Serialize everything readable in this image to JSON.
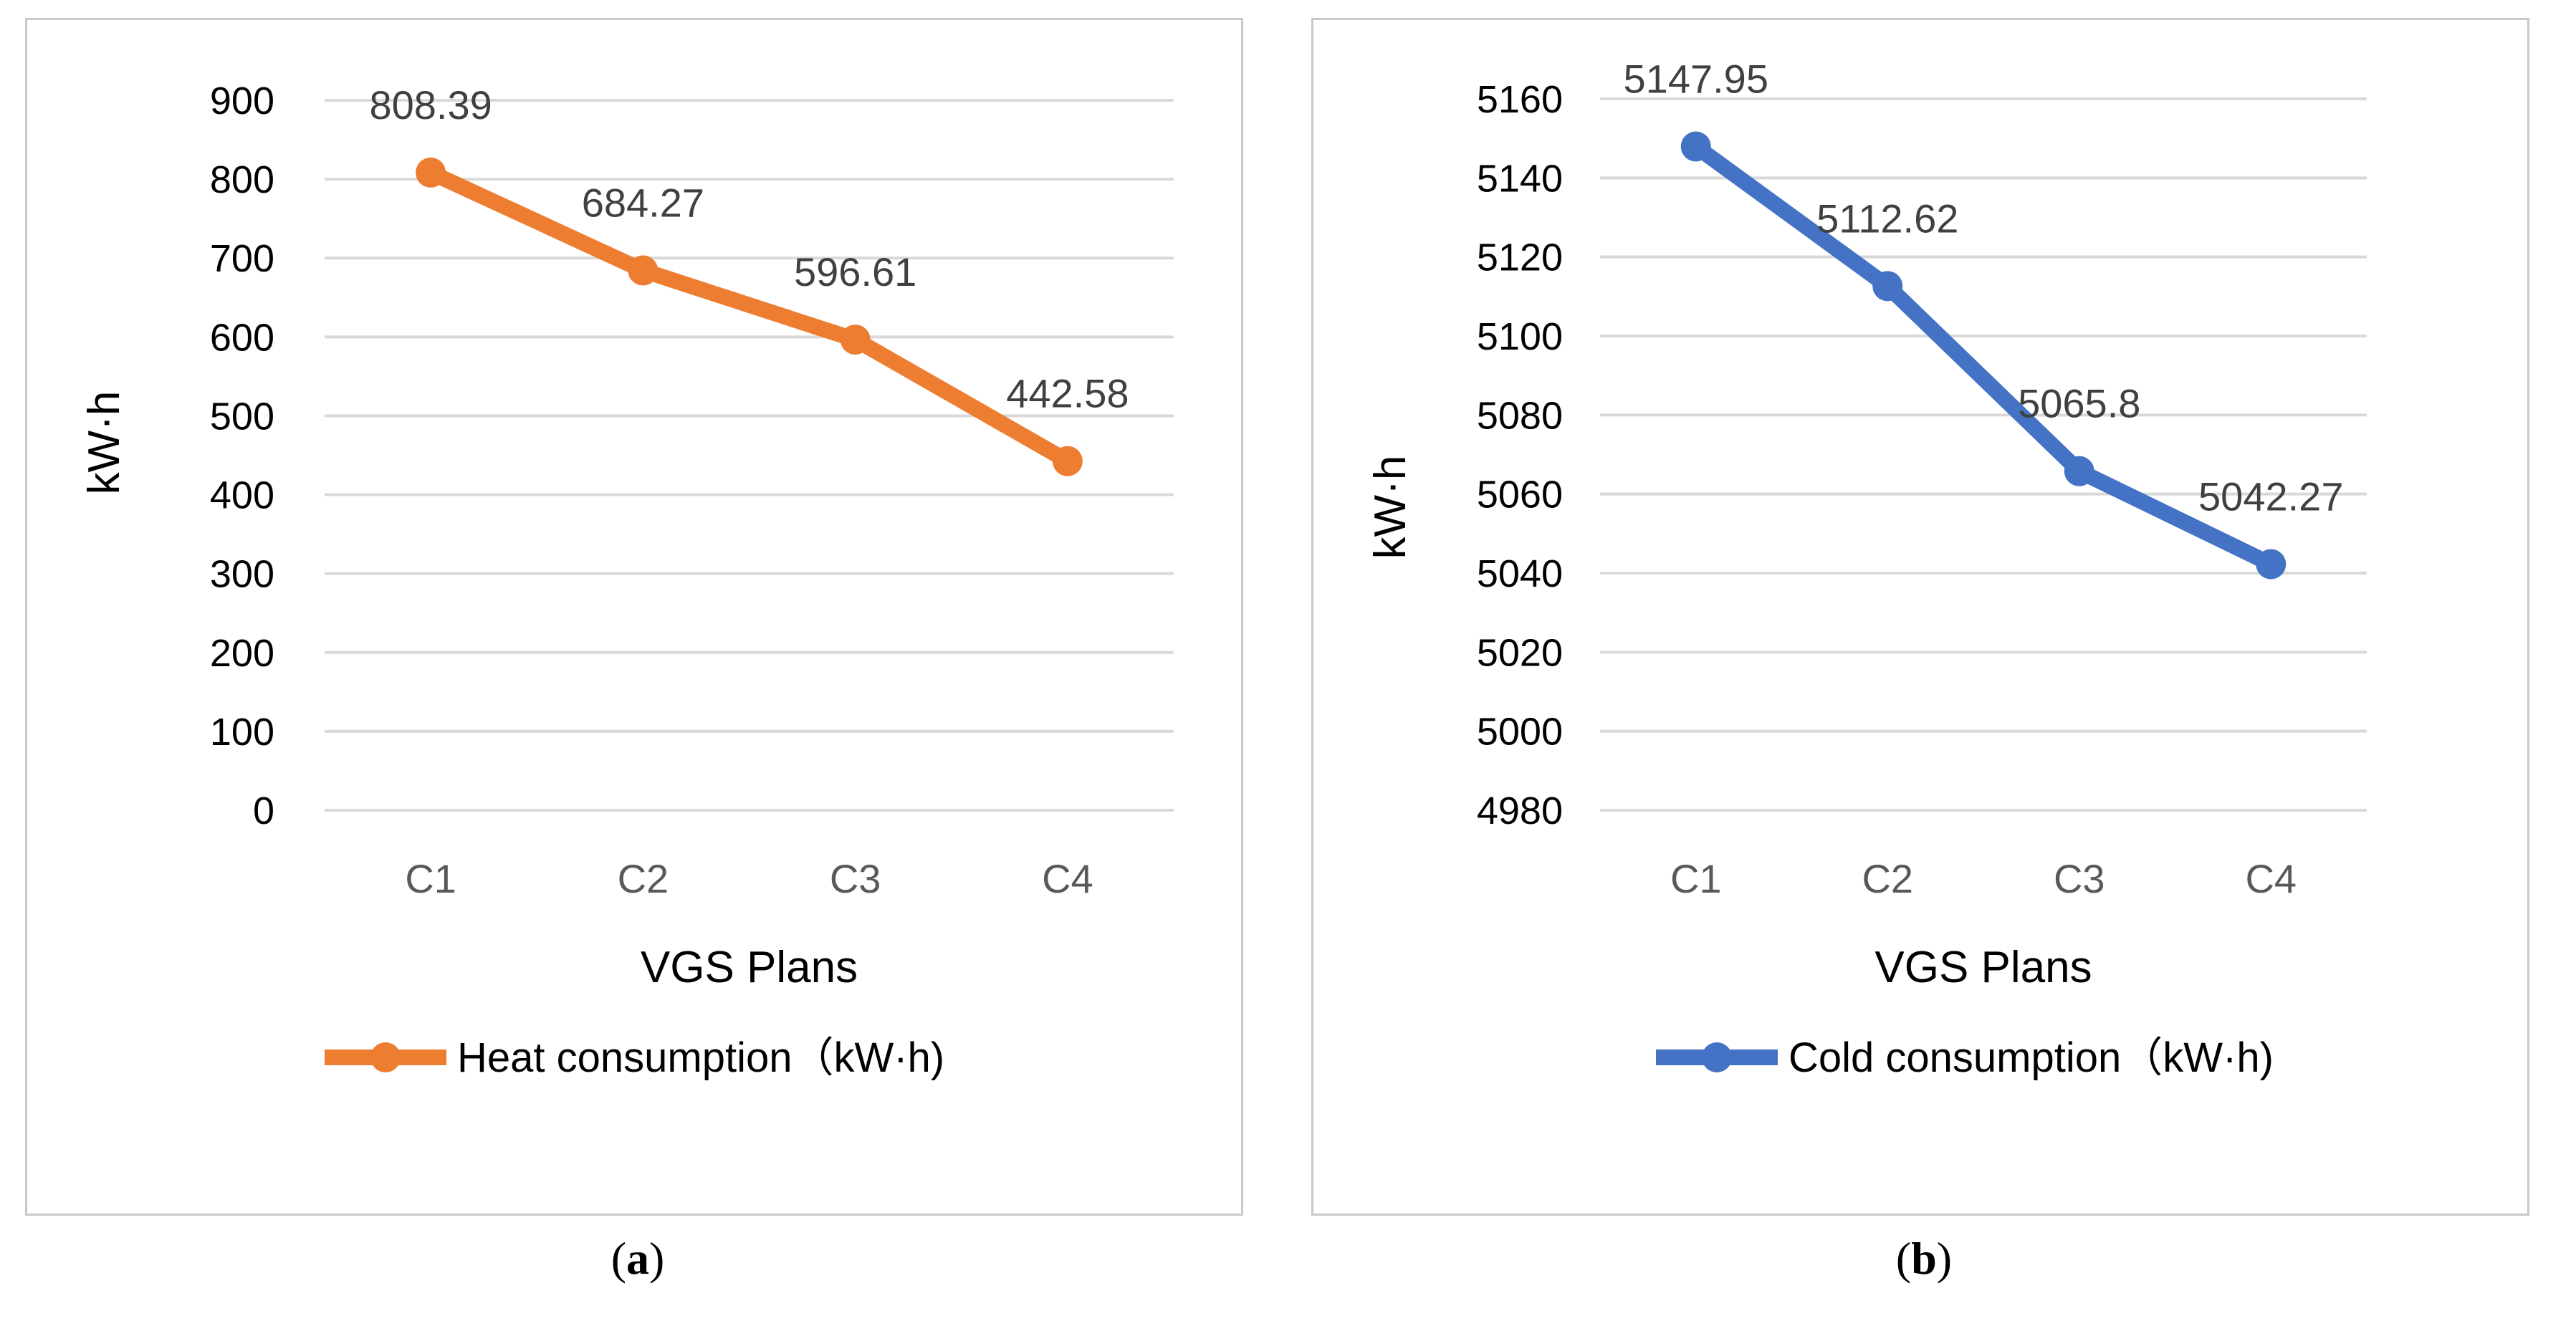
{
  "chart_data": [
    {
      "type": "line",
      "panel_label": "a",
      "categories": [
        "C1",
        "C2",
        "C3",
        "C4"
      ],
      "series": [
        {
          "name": "Heat consumption（kW·h)",
          "values": [
            808.39,
            684.27,
            596.61,
            442.58
          ],
          "color": "#ED7D31"
        }
      ],
      "data_labels": [
        "808.39",
        "684.27",
        "596.61",
        "442.58"
      ],
      "xlabel": "VGS Plans",
      "ylabel": "kW·h",
      "ylim": [
        0,
        900
      ],
      "yticks": [
        "0",
        "100",
        "200",
        "300",
        "400",
        "500",
        "600",
        "700",
        "800",
        "900"
      ],
      "legend": "bottom",
      "grid": true
    },
    {
      "type": "line",
      "panel_label": "b",
      "categories": [
        "C1",
        "C2",
        "C3",
        "C4"
      ],
      "series": [
        {
          "name": "Cold consumption（kW·h)",
          "values": [
            5147.95,
            5112.62,
            5065.8,
            5042.27
          ],
          "color": "#4472C4"
        }
      ],
      "data_labels": [
        "5147.95",
        "5112.62",
        "5065.8",
        "5042.27"
      ],
      "xlabel": "VGS Plans",
      "ylabel": "kW·h",
      "ylim": [
        4980,
        5160
      ],
      "yticks": [
        "4980",
        "5000",
        "5020",
        "5040",
        "5060",
        "5080",
        "5100",
        "5120",
        "5140",
        "5160"
      ],
      "legend": "bottom",
      "grid": true
    }
  ],
  "captions": {
    "a": "a",
    "b": "b"
  }
}
